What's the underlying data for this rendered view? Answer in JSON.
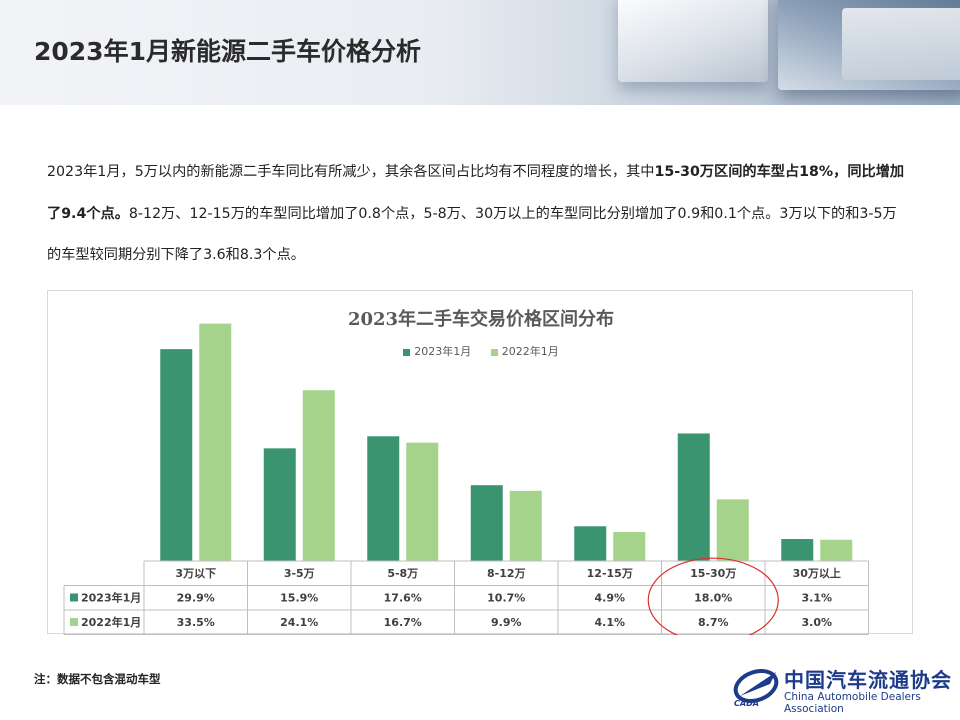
{
  "header": {
    "title": "2023年1月新能源二手车价格分析"
  },
  "description": {
    "t1": "2023年1月，5万以内的新能源二手车同比有所减少，其余各区间占比均有不同程度的增长，其中",
    "b1": "15-30万区间的车型占18%，同比增加了9.4个点。",
    "t2": "8-12万、12-15万的车型同比增加了0.8个点，5-8万、30万以上的车型同比分别增加了0.9和0.1个点。3万以下的和3-5万的车型较同期分别下降了3.6和8.3个点。"
  },
  "chart_data": {
    "type": "bar",
    "title": "2023年二手车交易价格区间分布",
    "categories": [
      "3万以下",
      "3-5万",
      "5-8万",
      "8-12万",
      "12-15万",
      "15-30万",
      "30万以上"
    ],
    "series": [
      {
        "name": "2023年1月",
        "color": "#3b9470",
        "values": [
          29.9,
          15.9,
          17.6,
          10.7,
          4.9,
          18.0,
          3.1
        ],
        "labels": [
          "29.9%",
          "15.9%",
          "17.6%",
          "10.7%",
          "4.9%",
          "18.0%",
          "3.1%"
        ]
      },
      {
        "name": "2022年1月",
        "color": "#a6d38c",
        "values": [
          33.5,
          24.1,
          16.7,
          9.9,
          4.1,
          8.7,
          3.0
        ],
        "labels": [
          "33.5%",
          "24.1%",
          "16.7%",
          "9.9%",
          "4.1%",
          "8.7%",
          "3.0%"
        ]
      }
    ],
    "ylim": [
      0,
      35
    ],
    "data_table": true,
    "highlight": {
      "category": "15-30万",
      "shape": "ellipse",
      "color": "#d9302c"
    },
    "legend_position": "top-center"
  },
  "footnote": "注：数据不包含混动车型",
  "logo": {
    "name": "中国汽车流通协会",
    "english": "China Automobile Dealers Association",
    "abbr": "CADA"
  }
}
